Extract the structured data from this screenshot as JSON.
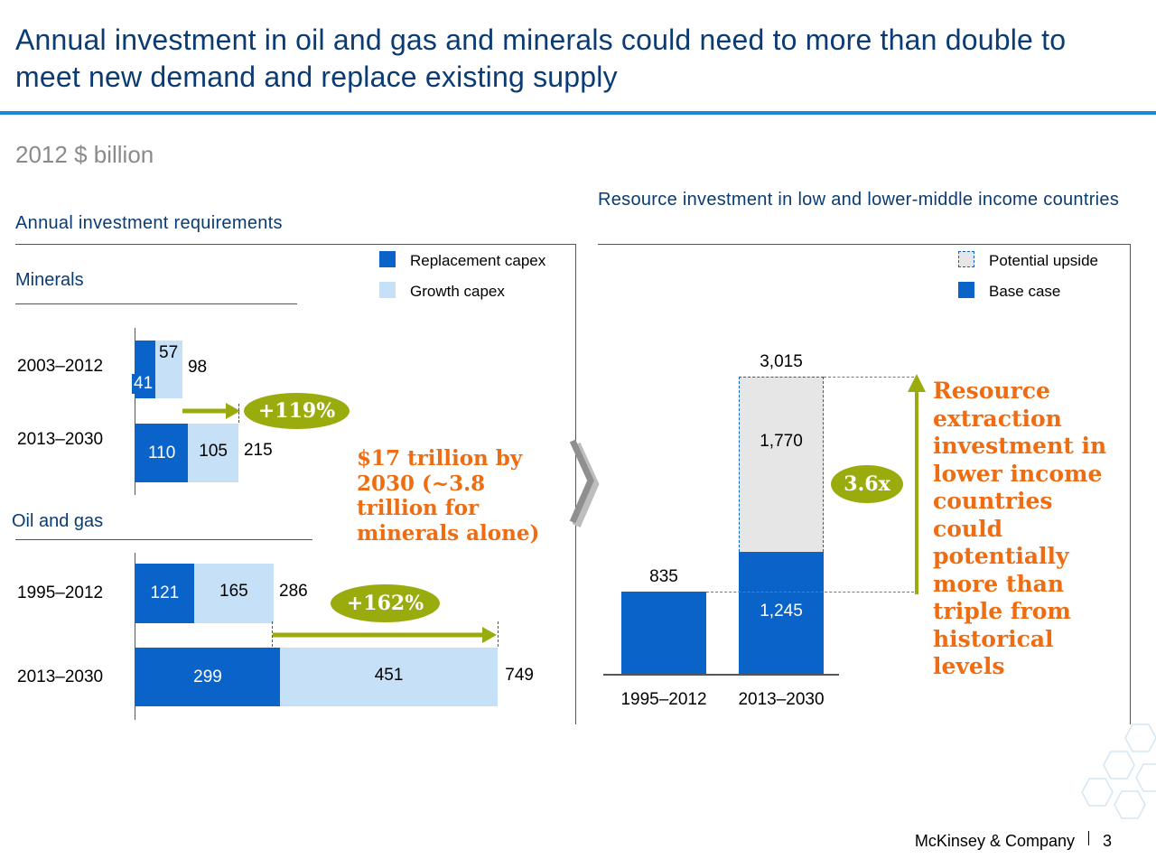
{
  "header": {
    "title": "Annual investment in oil and gas and minerals could need to more than double to meet new demand and replace existing supply",
    "unit": "2012 $ billion"
  },
  "left_panel": {
    "title": "Annual investment requirements",
    "legend": [
      {
        "label": "Replacement capex",
        "color": "#0a63c9"
      },
      {
        "label": "Growth capex",
        "color": "#c6e0f7"
      }
    ],
    "minerals_title": "Minerals",
    "oil_title": "Oil and gas",
    "minerals_change": "+119%",
    "oil_change": "+162%",
    "callout": "$17 trillion by 2030 (~3.8 trillion for minerals alone)"
  },
  "right_panel": {
    "title": "Resource investment in low and lower-middle income countries",
    "legend": [
      {
        "label": "Potential upside",
        "color": "#e6e6e6"
      },
      {
        "label": "Base case",
        "color": "#0a63c9"
      }
    ],
    "multiplier": "3.6x",
    "callout": "Resource extraction investment in lower income countries could potentially more than triple from historical levels"
  },
  "chart_data": [
    {
      "type": "bar",
      "orientation": "horizontal",
      "stacked": true,
      "group": "Minerals",
      "categories": [
        "2003–2012",
        "2013–2030"
      ],
      "series": [
        {
          "name": "Replacement capex",
          "values": [
            41,
            110
          ]
        },
        {
          "name": "Growth capex",
          "values": [
            57,
            105
          ]
        }
      ],
      "totals": [
        98,
        215
      ]
    },
    {
      "type": "bar",
      "orientation": "horizontal",
      "stacked": true,
      "group": "Oil and gas",
      "categories": [
        "1995–2012",
        "2013–2030"
      ],
      "series": [
        {
          "name": "Replacement capex",
          "values": [
            121,
            299
          ]
        },
        {
          "name": "Growth capex",
          "values": [
            165,
            451
          ]
        }
      ],
      "totals": [
        286,
        749
      ]
    },
    {
      "type": "bar",
      "stacked": true,
      "categories": [
        "1995–2012",
        "2013–2030"
      ],
      "series": [
        {
          "name": "Base case",
          "values": [
            835,
            1245
          ]
        },
        {
          "name": "Potential upside",
          "values": [
            0,
            1770
          ]
        }
      ],
      "totals": [
        835,
        3015
      ]
    }
  ],
  "footer": {
    "brand": "McKinsey & Company",
    "page": "3"
  }
}
